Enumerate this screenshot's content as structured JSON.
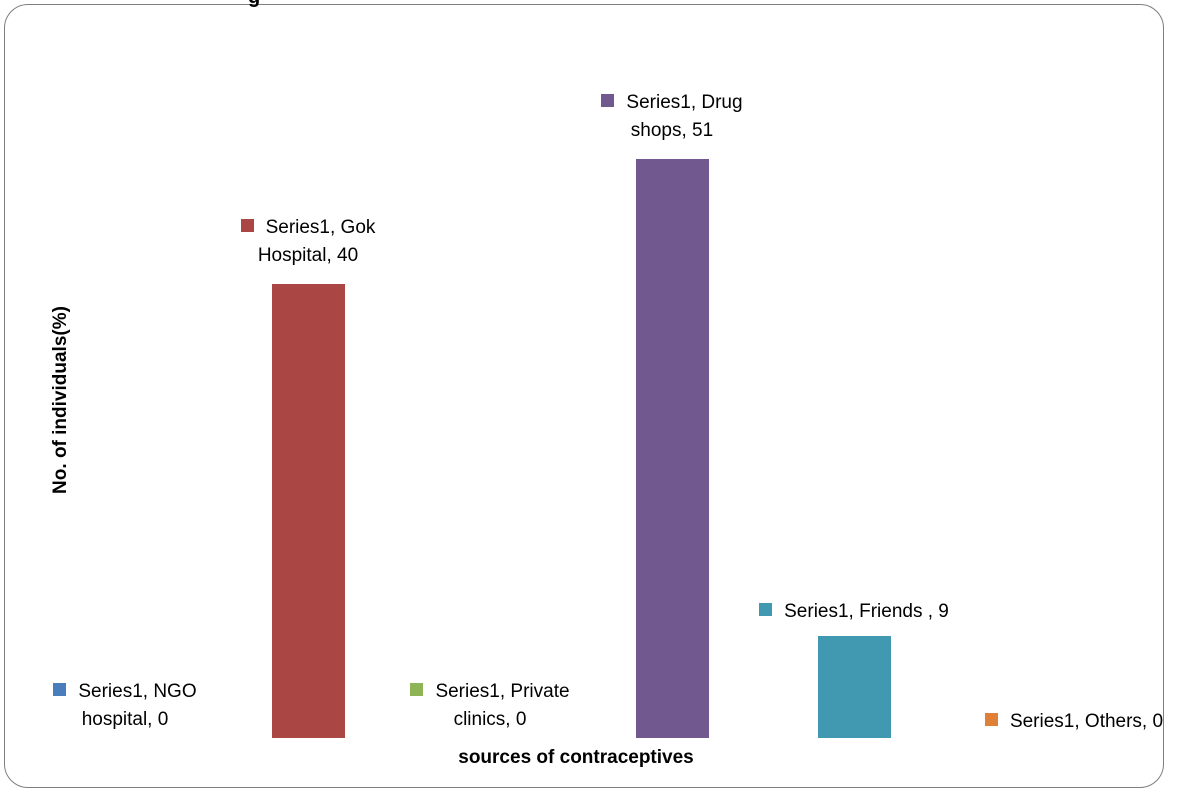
{
  "page": {
    "top_fragment": "g"
  },
  "chart_data": {
    "type": "bar",
    "title": "",
    "xlabel": "sources of contraceptives",
    "ylabel": "No. of individuals(%)",
    "ylim": [
      0,
      60
    ],
    "grid": false,
    "legend": "none",
    "categories": [
      "NGO hospital",
      "Gok Hospital",
      "Private clinics",
      "Drug shops",
      "Friends",
      "Others"
    ],
    "values": [
      0,
      40,
      0,
      51,
      9,
      0
    ],
    "colors": [
      "#4a7ebb",
      "#aa4644",
      "#8fb456",
      "#71588f",
      "#4099b0",
      "#e07f36"
    ],
    "series": [
      {
        "name": "Series1",
        "values": [
          0,
          40,
          0,
          51,
          9,
          0
        ]
      }
    ],
    "data_labels": [
      {
        "line1": "Series1, NGO",
        "line2": "hospital, 0"
      },
      {
        "line1": "Series1, Gok",
        "line2": "Hospital, 40"
      },
      {
        "line1": "Series1, Private",
        "line2": "clinics, 0"
      },
      {
        "line1": "Series1, Drug",
        "line2": "shops, 51"
      },
      {
        "line1": "Series1, Friends , 9",
        "line2": ""
      },
      {
        "line1": "Series1, Others, 0",
        "line2": ""
      }
    ]
  }
}
